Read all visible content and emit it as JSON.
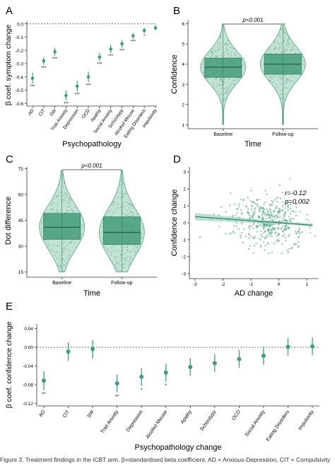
{
  "colors": {
    "accent": "#3f9e7b",
    "accent_dark": "#2f7d5f",
    "accent_light": "#8fcbb0",
    "box_fill": "#3d9a74"
  },
  "chart_data": [
    {
      "panel": "A",
      "type": "scatter",
      "xlabel": "Psychopathology",
      "ylabel": "β coef. symptom change",
      "categories": [
        "AD",
        "CIT",
        "SW",
        "Trait Anxiety",
        "Depression",
        "OCD",
        "Apathy",
        "Social Anxiety",
        "Schizotypy",
        "Alcohol Misuse",
        "Eating Disorders",
        "Impulsivity"
      ],
      "values": [
        -0.41,
        -0.28,
        -0.21,
        -0.54,
        -0.47,
        -0.4,
        -0.25,
        -0.19,
        -0.15,
        -0.09,
        -0.05,
        -0.03
      ],
      "ci_low": [
        -0.45,
        -0.31,
        -0.24,
        -0.58,
        -0.51,
        -0.44,
        -0.28,
        -0.22,
        -0.18,
        -0.11,
        -0.07,
        -0.05
      ],
      "ci_high": [
        -0.37,
        -0.25,
        -0.18,
        -0.5,
        -0.43,
        -0.36,
        -0.22,
        -0.16,
        -0.12,
        -0.07,
        -0.03,
        -0.01
      ],
      "stars": [
        "***",
        "***",
        "***",
        "***",
        "***",
        "***",
        "***",
        "***",
        "***",
        "***",
        "*",
        ""
      ],
      "yticks": [
        "0.0",
        "-0.1",
        "-0.2",
        "-0.3",
        "-0.4",
        "-0.5",
        "-0.6"
      ],
      "ylim": [
        -0.62,
        0.02
      ]
    },
    {
      "panel": "B",
      "type": "violin",
      "xlabel": "Time",
      "ylabel": "Confidence",
      "categories": [
        "Baseline",
        "Follow-up"
      ],
      "median": [
        3.85,
        4.0
      ],
      "q1": [
        3.35,
        3.5
      ],
      "q3": [
        4.3,
        4.5
      ],
      "range": [
        [
          1,
          6
        ],
        [
          1,
          6
        ]
      ],
      "yticks": [
        "1",
        "2",
        "3",
        "4",
        "5",
        "6"
      ],
      "ylim": [
        0.8,
        6.2
      ],
      "annotation": "p<0.001"
    },
    {
      "panel": "C",
      "type": "violin",
      "xlabel": "Time",
      "ylabel": "Dot difference",
      "categories": [
        "Baseline",
        "Follow-up"
      ],
      "median": [
        41,
        38
      ],
      "q1": [
        34,
        31
      ],
      "q3": [
        49,
        47
      ],
      "range": [
        [
          15,
          74
        ],
        [
          15,
          74
        ]
      ],
      "yticks": [
        "15",
        "30",
        "45",
        "60",
        "75"
      ],
      "ylim": [
        12,
        76
      ],
      "annotation": "p<0.001"
    },
    {
      "panel": "D",
      "type": "scatter",
      "xlabel": "AD change",
      "ylabel": "Confidence change",
      "xticks": [
        "-3",
        "-2",
        "-1",
        "0",
        "1"
      ],
      "yticks": [
        "3",
        "2",
        "1",
        "0",
        "-1",
        "-2",
        "-3"
      ],
      "xlim": [
        -3.2,
        1.4
      ],
      "ylim": [
        -3.3,
        3.3
      ],
      "r_label": "r=-0.12",
      "p_label": "p=0.002",
      "fit": {
        "intercept": 0.0,
        "slope": -0.12
      },
      "point_count": 420
    },
    {
      "panel": "E",
      "type": "scatter",
      "xlabel": "Psychopathology change",
      "ylabel": "β coef. confidence change",
      "categories": [
        "AD",
        "CIT",
        "SW",
        "Trait Anxiety",
        "Depression",
        "Alcohol Misuse",
        "Apathy",
        "Schizotypy",
        "OCD",
        "Social Anxiety",
        "Eating Disorders",
        "Impulsivity"
      ],
      "values": [
        -0.071,
        -0.009,
        -0.004,
        -0.077,
        -0.063,
        -0.054,
        -0.042,
        -0.034,
        -0.025,
        -0.018,
        0.001,
        0.002
      ],
      "ci_low": [
        -0.091,
        -0.029,
        -0.024,
        -0.096,
        -0.082,
        -0.073,
        -0.061,
        -0.053,
        -0.044,
        -0.037,
        -0.018,
        -0.017
      ],
      "ci_high": [
        -0.051,
        0.011,
        0.016,
        -0.058,
        -0.044,
        -0.035,
        -0.023,
        -0.015,
        -0.006,
        0.001,
        0.02,
        0.021
      ],
      "stars": [
        "**",
        "",
        "",
        "**",
        "*",
        "*",
        "",
        "",
        "",
        "",
        "",
        ""
      ],
      "yticks": [
        "0.04",
        "0.00",
        "-0.04",
        "-0.08",
        "-0.12"
      ],
      "ylim": [
        -0.125,
        0.05
      ]
    }
  ],
  "panel_letters": [
    "A",
    "B",
    "C",
    "D",
    "E"
  ],
  "caption": "Figure 3. Treatment findings in the iCBT arm. β=standardised beta coefficient. AD = Anxious-Depression, CIT = Compulsivity"
}
